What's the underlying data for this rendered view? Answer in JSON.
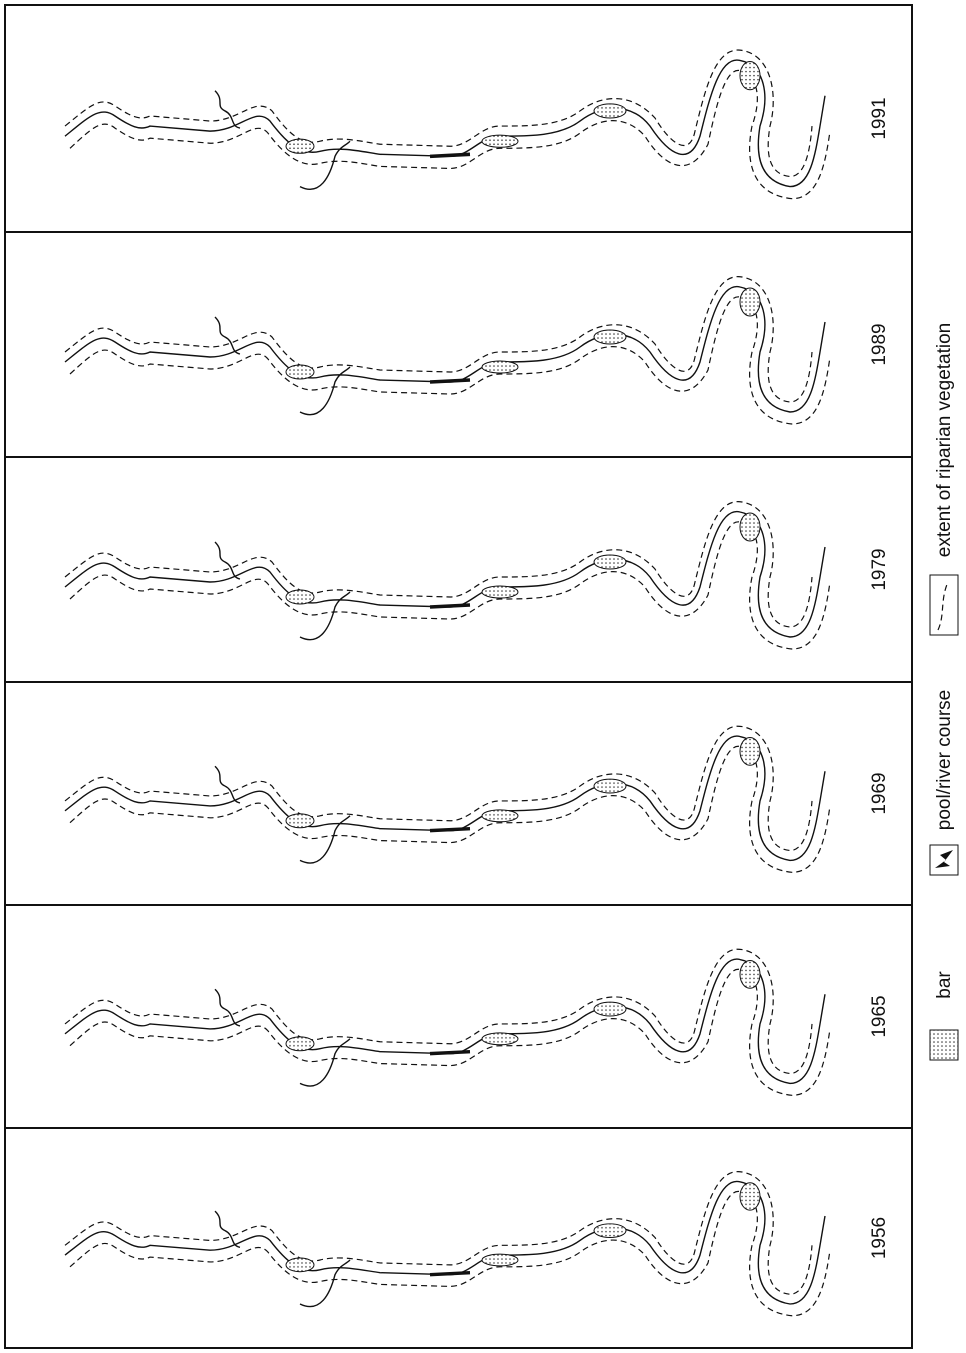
{
  "panels": [
    {
      "year": "1991"
    },
    {
      "year": "1989"
    },
    {
      "year": "1979"
    },
    {
      "year": "1969"
    },
    {
      "year": "1965"
    },
    {
      "year": "1956"
    }
  ],
  "legend": [
    {
      "label": "bar"
    },
    {
      "label": "pool/river course"
    },
    {
      "label": "extent of riparian vegetation"
    }
  ]
}
